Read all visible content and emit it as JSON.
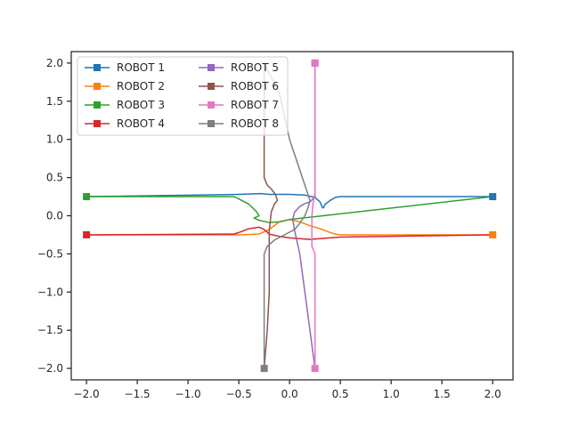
{
  "chart_data": {
    "type": "line",
    "title": "",
    "xlabel": "",
    "ylabel": "",
    "xlim": [
      -2.15,
      2.2
    ],
    "ylim": [
      -2.15,
      2.15
    ],
    "xticks": [
      -2.0,
      -1.5,
      -1.0,
      -0.5,
      0.0,
      0.5,
      1.0,
      1.5,
      2.0
    ],
    "xtick_labels": [
      "−2.0",
      "−1.5",
      "−1.0",
      "−0.5",
      "0.0",
      "0.5",
      "1.0",
      "1.5",
      "2.0"
    ],
    "yticks": [
      2.0,
      1.5,
      1.0,
      0.5,
      0.0,
      -0.5,
      -1.0,
      -1.5,
      -2.0
    ],
    "ytick_labels": [
      "2.0",
      "1.5",
      "1.0",
      "0.5",
      "0.0",
      "−0.5",
      "−1.0",
      "−1.5",
      "−2.0"
    ],
    "grid": false,
    "legend_position": "top-left",
    "legend_columns": 2,
    "series": [
      {
        "name": "ROBOT 1",
        "color": "#1f77b4",
        "points": [
          [
            2.0,
            0.25
          ],
          [
            0.5,
            0.25
          ],
          [
            0.45,
            0.24
          ],
          [
            0.4,
            0.2
          ],
          [
            0.35,
            0.15
          ],
          [
            0.33,
            0.1
          ],
          [
            0.32,
            0.12
          ],
          [
            0.3,
            0.18
          ],
          [
            0.25,
            0.24
          ],
          [
            0.15,
            0.27
          ],
          [
            0.0,
            0.28
          ],
          [
            -0.2,
            0.28
          ],
          [
            -0.28,
            0.29
          ],
          [
            -0.5,
            0.28
          ],
          [
            -2.0,
            0.25
          ]
        ]
      },
      {
        "name": "ROBOT 2",
        "color": "#ff7f0e",
        "points": [
          [
            2.0,
            -0.25
          ],
          [
            0.5,
            -0.25
          ],
          [
            0.45,
            -0.24
          ],
          [
            0.4,
            -0.22
          ],
          [
            0.3,
            -0.17
          ],
          [
            0.2,
            -0.13
          ],
          [
            0.1,
            -0.08
          ],
          [
            0.0,
            -0.05
          ],
          [
            -0.1,
            -0.08
          ],
          [
            -0.2,
            -0.18
          ],
          [
            -0.3,
            -0.24
          ],
          [
            -0.5,
            -0.25
          ],
          [
            -2.0,
            -0.25
          ]
        ]
      },
      {
        "name": "ROBOT 3",
        "color": "#2ca02c",
        "points": [
          [
            -2.0,
            0.25
          ],
          [
            -0.55,
            0.25
          ],
          [
            -0.5,
            0.22
          ],
          [
            -0.4,
            0.15
          ],
          [
            -0.33,
            0.06
          ],
          [
            -0.3,
            0.0
          ],
          [
            -0.35,
            -0.03
          ],
          [
            -0.3,
            -0.06
          ],
          [
            -0.2,
            -0.09
          ],
          [
            -0.1,
            -0.08
          ],
          [
            0.0,
            -0.05
          ],
          [
            2.0,
            0.25
          ]
        ]
      },
      {
        "name": "ROBOT 4",
        "color": "#d62728",
        "points": [
          [
            -2.0,
            -0.25
          ],
          [
            -0.55,
            -0.24
          ],
          [
            -0.5,
            -0.22
          ],
          [
            -0.4,
            -0.17
          ],
          [
            -0.3,
            -0.15
          ],
          [
            -0.25,
            -0.18
          ],
          [
            -0.2,
            -0.24
          ],
          [
            -0.1,
            -0.27
          ],
          [
            0.0,
            -0.29
          ],
          [
            0.2,
            -0.31
          ],
          [
            0.5,
            -0.28
          ],
          [
            2.0,
            -0.25
          ]
        ]
      },
      {
        "name": "ROBOT 5",
        "color": "#9467bd",
        "points": [
          [
            0.25,
            -2.0
          ],
          [
            0.2,
            -1.5
          ],
          [
            0.15,
            -1.0
          ],
          [
            0.1,
            -0.5
          ],
          [
            0.05,
            -0.2
          ],
          [
            0.03,
            -0.05
          ],
          [
            0.05,
            0.05
          ],
          [
            0.1,
            0.12
          ],
          [
            0.15,
            0.16
          ],
          [
            0.2,
            0.18
          ],
          [
            0.25,
            0.25
          ],
          [
            0.25,
            2.0
          ]
        ]
      },
      {
        "name": "ROBOT 6",
        "color": "#8c564b",
        "points": [
          [
            -0.25,
            2.0
          ],
          [
            -0.25,
            0.5
          ],
          [
            -0.22,
            0.4
          ],
          [
            -0.18,
            0.35
          ],
          [
            -0.14,
            0.28
          ],
          [
            -0.12,
            0.2
          ],
          [
            -0.15,
            0.15
          ],
          [
            -0.18,
            0.05
          ],
          [
            -0.2,
            -0.2
          ],
          [
            -0.2,
            -0.5
          ],
          [
            -0.2,
            -1.0
          ],
          [
            -0.22,
            -1.5
          ],
          [
            -0.25,
            -2.0
          ]
        ]
      },
      {
        "name": "ROBOT 7",
        "color": "#e377c2",
        "points": [
          [
            0.25,
            2.0
          ],
          [
            0.25,
            0.5
          ],
          [
            0.25,
            0.3
          ],
          [
            0.23,
            0.15
          ],
          [
            0.22,
            0.0
          ],
          [
            0.22,
            -0.2
          ],
          [
            0.22,
            -0.4
          ],
          [
            0.25,
            -0.5
          ],
          [
            0.25,
            -2.0
          ]
        ]
      },
      {
        "name": "ROBOT 8",
        "color": "#7f7f7f",
        "points": [
          [
            -0.25,
            -2.0
          ],
          [
            -0.25,
            -0.5
          ],
          [
            -0.22,
            -0.4
          ],
          [
            -0.15,
            -0.32
          ],
          [
            -0.05,
            -0.25
          ],
          [
            0.05,
            -0.18
          ],
          [
            0.1,
            -0.1
          ],
          [
            0.15,
            0.0
          ],
          [
            0.18,
            0.1
          ],
          [
            0.2,
            0.2
          ],
          [
            0.1,
            0.6
          ],
          [
            0.0,
            1.0
          ],
          [
            -0.05,
            1.3
          ],
          [
            -0.1,
            1.6
          ],
          [
            -0.25,
            2.0
          ]
        ]
      }
    ],
    "markers": [
      {
        "series": 0,
        "points": [
          [
            2.0,
            0.25
          ]
        ]
      },
      {
        "series": 1,
        "points": [
          [
            2.0,
            -0.25
          ]
        ]
      },
      {
        "series": 2,
        "points": [
          [
            -2.0,
            0.25
          ]
        ]
      },
      {
        "series": 3,
        "points": [
          [
            -2.0,
            -0.25
          ]
        ]
      },
      {
        "series": 4,
        "points": [
          [
            0.25,
            2.0
          ]
        ]
      },
      {
        "series": 5,
        "points": []
      },
      {
        "series": 6,
        "points": [
          [
            0.25,
            2.0
          ],
          [
            0.25,
            -2.0
          ]
        ]
      },
      {
        "series": 7,
        "points": [
          [
            -0.25,
            -2.0
          ]
        ]
      }
    ]
  }
}
